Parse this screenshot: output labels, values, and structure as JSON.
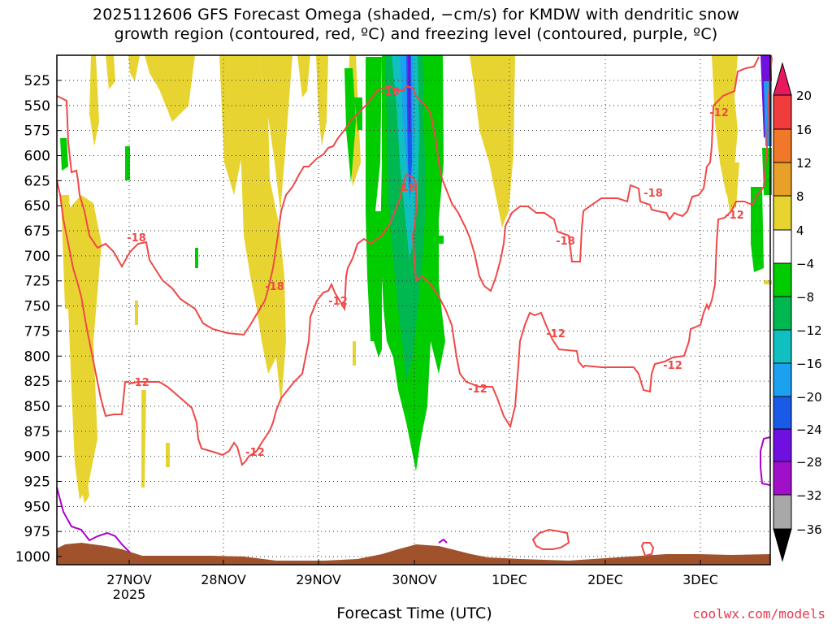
{
  "title_lines": [
    "2025112606 GFS Forecast Omega (shaded, −cm/s) for KMDW with dendritic snow",
    "growth region (contoured, red, ºC) and freezing level (contoured, purple, ºC)"
  ],
  "x_axis_title": "Forecast Time (UTC)",
  "credit": "coolwx.com/models",
  "chart_data": {
    "type": "heatmap",
    "x_ticks": [
      "27NOV",
      "28NOV",
      "29NOV",
      "30NOV",
      "1DEC",
      "2DEC",
      "3DEC"
    ],
    "x_year_label": "2025",
    "y_ticks": [
      525,
      550,
      575,
      600,
      625,
      650,
      675,
      700,
      725,
      750,
      775,
      800,
      825,
      850,
      875,
      900,
      925,
      950,
      975,
      1000
    ],
    "y_unit": "hPa",
    "colorbar": {
      "levels": [
        20,
        16,
        12,
        8,
        4,
        -4,
        -8,
        -12,
        -16,
        -20,
        -24,
        -28,
        -32,
        -36
      ],
      "colors": [
        "#e8185c",
        "#f03c3c",
        "#f07828",
        "#e8a028",
        "#e8d430",
        "#ffffff",
        "#00cc00",
        "#00b850",
        "#10c0c0",
        "#1ca0f0",
        "#1a5ae8",
        "#7010e0",
        "#a010c8",
        "#a8a8a8",
        "#000000"
      ]
    },
    "contour_labels": {
      "dgz_red": [
        "-18",
        "-18",
        "-18",
        "-18",
        "-18",
        "-18",
        "-12",
        "-12",
        "-12",
        "-12",
        "-12",
        "-12",
        "-12",
        "-12"
      ]
    },
    "contour_colors": {
      "dgz": "#f04848",
      "freezing": "#b000d0",
      "terrain": "#a0522d"
    },
    "grid": "dotted"
  }
}
